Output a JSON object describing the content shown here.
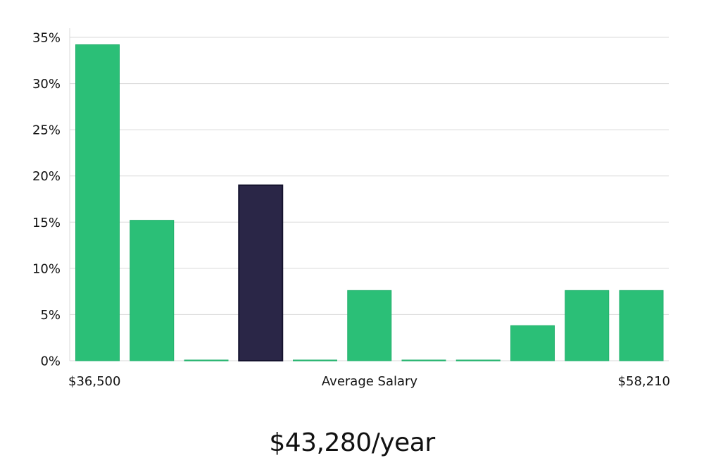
{
  "chart_data": {
    "type": "bar",
    "categories": [
      "1",
      "2",
      "3",
      "4",
      "5",
      "6",
      "7",
      "8",
      "9",
      "10",
      "11"
    ],
    "values": [
      34.2,
      15.2,
      0,
      19.0,
      0,
      7.6,
      0,
      0,
      3.8,
      7.6,
      7.6
    ],
    "highlight_index": 3,
    "colors": {
      "bar": "#2bbf77",
      "bar_edge": "#22b06c",
      "highlight": "#2a2647",
      "highlight_edge": "#15132e"
    },
    "ylim": [
      0,
      35
    ],
    "yticks": [
      0,
      5,
      10,
      15,
      20,
      25,
      30,
      35
    ],
    "ytick_suffix": "%",
    "xlabel": "Average Salary",
    "x_min_label": "$36,500",
    "x_max_label": "$58,210",
    "grid": true
  },
  "average_salary": "$43,280/year"
}
